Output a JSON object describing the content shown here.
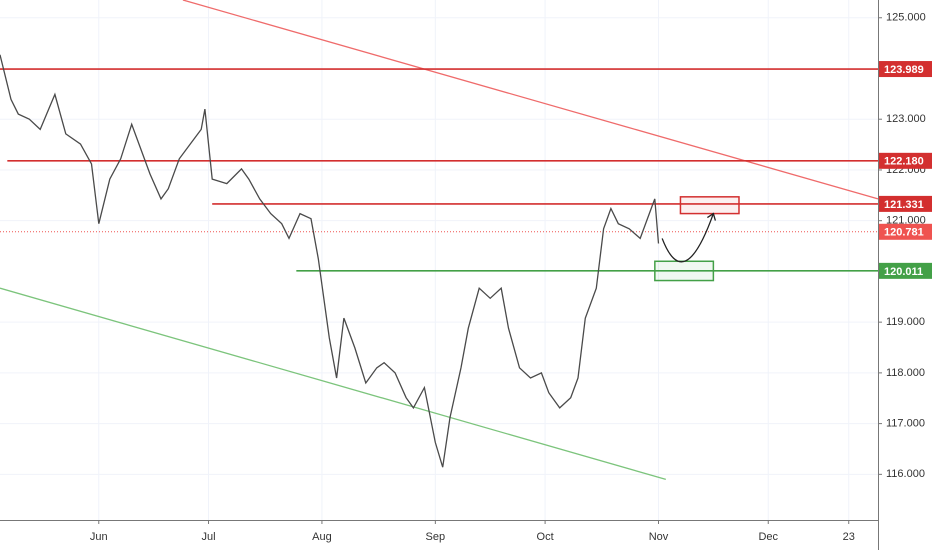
{
  "chart_data": {
    "type": "line",
    "xlim": [
      -27,
      213
    ],
    "ylim": [
      115.1,
      125.35
    ],
    "xticks": [
      {
        "value": 0,
        "label": "Jun"
      },
      {
        "value": 30,
        "label": "Jul"
      },
      {
        "value": 61,
        "label": "Aug"
      },
      {
        "value": 92,
        "label": "Sep"
      },
      {
        "value": 122,
        "label": "Oct"
      },
      {
        "value": 153,
        "label": "Nov"
      },
      {
        "value": 183,
        "label": "Dec"
      },
      {
        "value": 205,
        "label": "23"
      }
    ],
    "yticks": [
      {
        "value": 125,
        "label": "125.000"
      },
      {
        "value": 123,
        "label": "123.000"
      },
      {
        "value": 122,
        "label": "122.000"
      },
      {
        "value": 121,
        "label": "121.000"
      },
      {
        "value": 119,
        "label": "119.000"
      },
      {
        "value": 118,
        "label": "118.000"
      },
      {
        "value": 117,
        "label": "117.000"
      },
      {
        "value": 116,
        "label": "116.000"
      }
    ],
    "grid": true,
    "series": [
      {
        "color": "#4a4a4a",
        "x": [
          -27,
          -24,
          -22,
          -19,
          -16,
          -12,
          -9,
          -5,
          -2,
          0,
          3,
          6,
          9,
          11,
          14,
          17,
          19,
          22,
          25,
          28,
          29,
          31,
          35,
          39,
          41,
          44,
          47,
          50,
          52,
          55,
          58,
          60,
          63,
          65,
          67,
          70,
          73,
          76,
          78,
          81,
          84,
          86,
          89,
          92,
          94,
          96,
          99,
          101,
          104,
          107,
          110,
          112,
          115,
          118,
          121,
          123,
          126,
          129,
          131,
          133,
          136,
          138,
          140,
          142,
          145,
          148,
          151,
          152,
          153
        ],
        "values": [
          124.27,
          123.39,
          123.1,
          123.0,
          122.8,
          123.49,
          122.71,
          122.51,
          122.12,
          120.94,
          121.82,
          122.22,
          122.9,
          122.51,
          121.92,
          121.43,
          121.63,
          122.22,
          122.51,
          122.8,
          123.2,
          121.82,
          121.73,
          122.02,
          121.82,
          121.43,
          121.14,
          120.94,
          120.65,
          121.14,
          121.04,
          120.25,
          118.69,
          117.9,
          119.08,
          118.49,
          117.8,
          118.1,
          118.2,
          118.0,
          117.51,
          117.31,
          117.71,
          116.63,
          116.14,
          117.12,
          118.1,
          118.88,
          119.67,
          119.47,
          119.67,
          118.88,
          118.1,
          117.9,
          118.0,
          117.61,
          117.31,
          117.51,
          117.9,
          119.08,
          119.67,
          120.84,
          121.24,
          120.94,
          120.84,
          120.65,
          121.24,
          121.43,
          120.55
        ]
      }
    ],
    "levels": [
      {
        "value": 123.989,
        "label": "123.989",
        "xstart": -27,
        "color": "#d32f2f",
        "style": "solid"
      },
      {
        "value": 122.18,
        "label": "122.180",
        "xstart": -25,
        "color": "#d32f2f",
        "style": "solid"
      },
      {
        "value": 121.331,
        "label": "121.331",
        "xstart": 31,
        "color": "#d32f2f",
        "style": "solid"
      },
      {
        "value": 120.781,
        "label": "120.781",
        "xstart": -27,
        "color": "#ef5350",
        "style": "dotted"
      },
      {
        "value": 120.011,
        "label": "120.011",
        "xstart": 54,
        "color": "#43a047",
        "style": "solid"
      }
    ],
    "trendlines": [
      {
        "x": [
          23,
          213
        ],
        "y": [
          125.35,
          121.43
        ],
        "color": "#ef6b6b"
      },
      {
        "x": [
          -27,
          155
        ],
        "y": [
          119.67,
          115.9
        ],
        "color": "#7cc47c"
      }
    ],
    "boxes": [
      {
        "x": [
          159,
          175
        ],
        "y": [
          121.47,
          121.14
        ],
        "color": "#d32f2f"
      },
      {
        "x": [
          152,
          168
        ],
        "y": [
          120.2,
          119.82
        ],
        "color": "#43a047"
      }
    ],
    "projection": {
      "x": [
        154,
        160,
        168
      ],
      "y": [
        120.65,
        119.96,
        121.14
      ],
      "color": "#222222"
    }
  }
}
